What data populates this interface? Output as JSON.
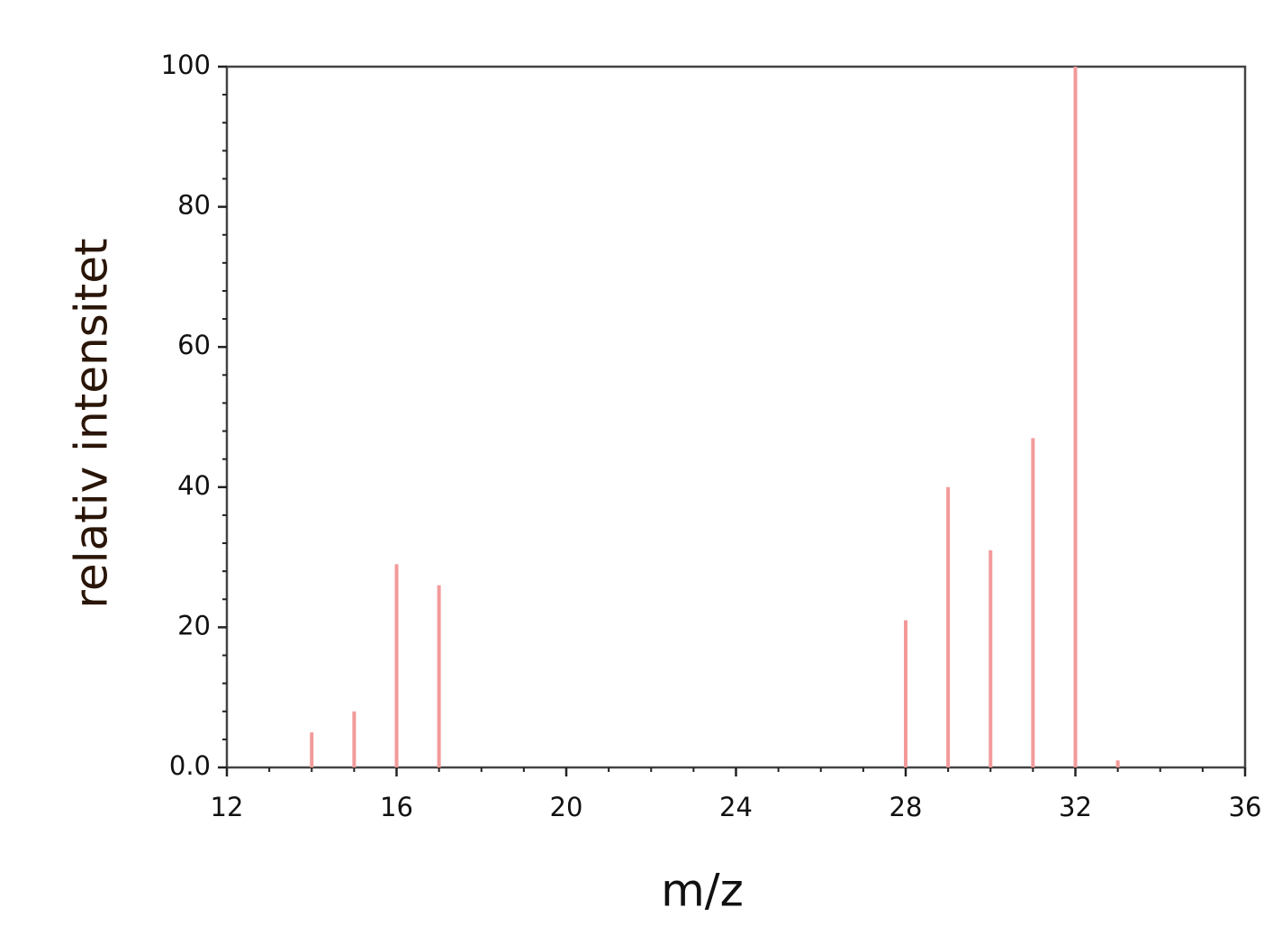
{
  "chart_data": {
    "type": "stem",
    "x_label": "m/z",
    "y_label": "relativ intensitet",
    "x": [
      14,
      15,
      16,
      17,
      28,
      29,
      30,
      31,
      32,
      33
    ],
    "values": [
      5,
      8,
      29,
      26,
      21,
      40,
      31,
      47,
      100,
      1
    ],
    "color": "#f29a9a",
    "xlim": [
      12,
      36
    ],
    "xticks": [
      12,
      16,
      20,
      24,
      28,
      32,
      36
    ],
    "ylim": [
      0,
      100
    ],
    "yticks": [
      {
        "value": 0,
        "label": "0.0"
      },
      20,
      40,
      60,
      80,
      100
    ]
  }
}
